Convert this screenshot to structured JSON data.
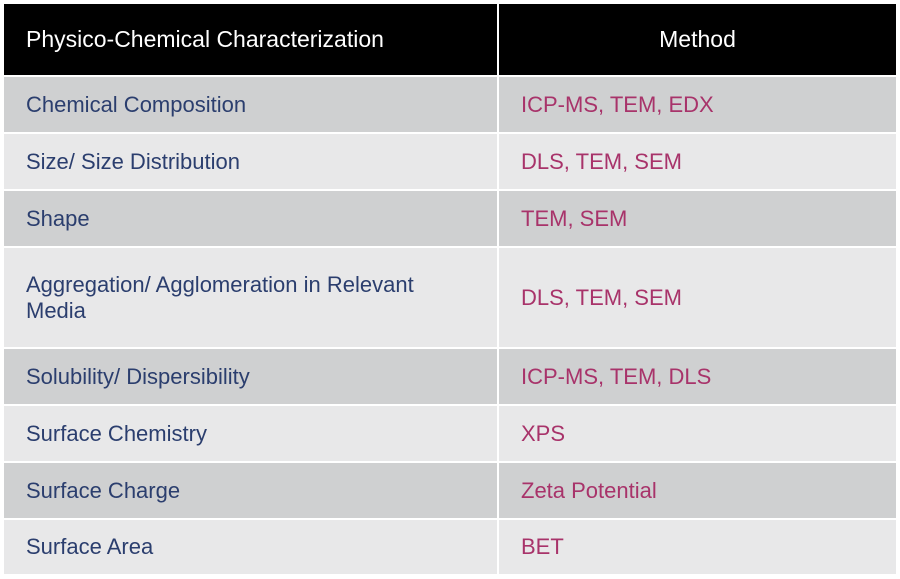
{
  "table": {
    "headers": {
      "property": "Physico-Chemical Characterization",
      "method": "Method"
    },
    "rows": [
      {
        "property": "Chemical Composition",
        "method": "ICP-MS, TEM, EDX"
      },
      {
        "property": "Size/ Size Distribution",
        "method": "DLS, TEM, SEM"
      },
      {
        "property": "Shape",
        "method": "TEM, SEM"
      },
      {
        "property": "Aggregation/ Agglomeration in Relevant Media",
        "method": "DLS, TEM, SEM"
      },
      {
        "property": "Solubility/ Dispersibility",
        "method": "ICP-MS, TEM, DLS"
      },
      {
        "property": "Surface Chemistry",
        "method": "XPS"
      },
      {
        "property": "Surface Charge",
        "method": "Zeta Potential"
      },
      {
        "property": "Surface Area",
        "method": "BET"
      }
    ]
  },
  "colors": {
    "header_bg": "#000000",
    "header_text": "#ffffff",
    "row_odd_bg": "#cfd0d1",
    "row_even_bg": "#e8e8e9",
    "property_text": "#2b3e6e",
    "method_text": "#a8336a"
  }
}
